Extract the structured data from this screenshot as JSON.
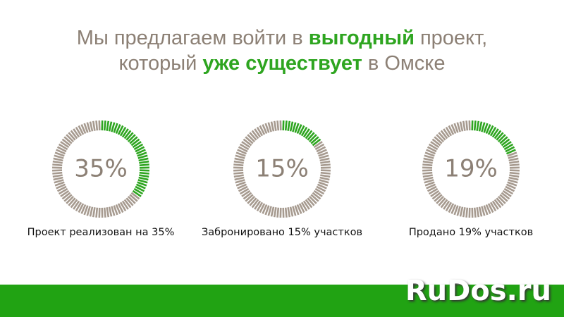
{
  "title": {
    "lines": [
      [
        {
          "text": "Мы предлагаем войти в ",
          "bold": false
        },
        {
          "text": "выгодный",
          "bold": true
        },
        {
          "text": " проект,",
          "bold": false
        }
      ],
      [
        {
          "text": "который ",
          "bold": false
        },
        {
          "text": "уже существует",
          "bold": true
        },
        {
          "text": " в Омске",
          "bold": false
        }
      ]
    ]
  },
  "ring_color": "#a69a8f",
  "fill_color": "#2ea520",
  "gauges": [
    {
      "value": 35,
      "value_label": "35%",
      "caption": "Проект реализован на 35%"
    },
    {
      "value": 15,
      "value_label": "15%",
      "caption": "Забронировано 15% участков"
    },
    {
      "value": 19,
      "value_label": "19%",
      "caption": "Продано 19% участков"
    }
  ],
  "watermark": "RuDos.ru"
}
